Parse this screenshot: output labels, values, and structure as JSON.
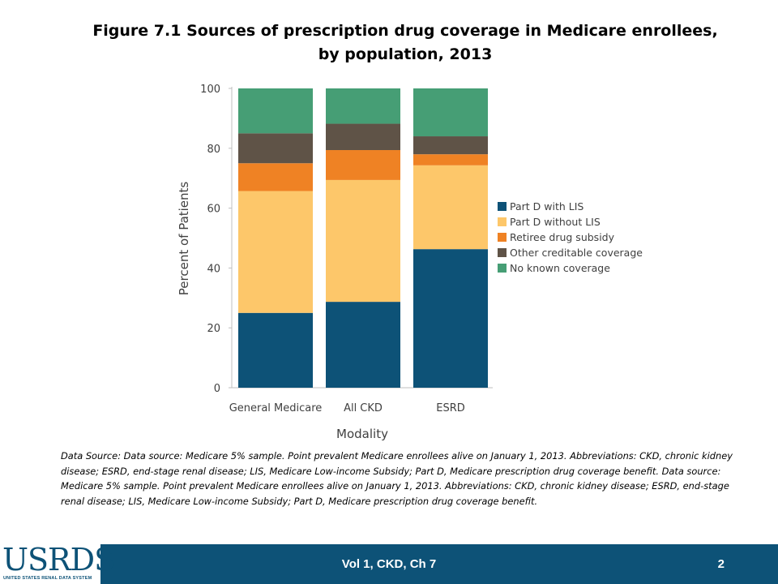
{
  "slide": {
    "title_line1": "Figure 7.1 Sources of prescription drug coverage in Medicare enrollees,",
    "title_line2": "by population, 2013",
    "source_text": "Data Source: Data source: Medicare 5% sample. Point prevalent Medicare enrollees alive on January 1, 2013. Abbreviations: CKD, chronic kidney disease; ESRD, end-stage renal disease; LIS, Medicare Low-income Subsidy; Part D, Medicare prescription drug coverage benefit. Data source: Medicare 5% sample. Point prevalent Medicare enrollees alive on January 1, 2013. Abbreviations: CKD, chronic kidney disease; ESRD, end-stage renal disease; LIS, Medicare Low-income Subsidy; Part D, Medicare prescription drug coverage benefit.",
    "footer_text": "Vol 1, CKD, Ch 7",
    "page_number": "2",
    "logo_word": "USRDS",
    "logo_subtitle": "UNITED STATES RENAL DATA SYSTEM",
    "colors": {
      "footer": "#0d5277",
      "logo": "#0d5277"
    }
  },
  "chart_data": {
    "type": "bar",
    "stacked": true,
    "categories": [
      "General Medicare",
      "All CKD",
      "ESRD"
    ],
    "series": [
      {
        "name": "Part D with LIS",
        "color": "#0d5277",
        "values": [
          25,
          28.7,
          46.3
        ]
      },
      {
        "name": "Part D without LIS",
        "color": "#fdc76a",
        "values": [
          40.7,
          40.7,
          28
        ]
      },
      {
        "name": "Retiree drug subsidy",
        "color": "#ef8224",
        "values": [
          9.3,
          10,
          3.7
        ]
      },
      {
        "name": "Other creditable coverage",
        "color": "#5f5347",
        "values": [
          10,
          8.8,
          6
        ]
      },
      {
        "name": "No known coverage",
        "color": "#469e75",
        "values": [
          15,
          11.8,
          16
        ]
      }
    ],
    "xlabel": "Modality",
    "ylabel": "Percent of Patients",
    "ylim": [
      0,
      100
    ],
    "yticks": [
      "0",
      "20",
      "40",
      "60",
      "80",
      "100"
    ],
    "grid": false,
    "legend_position": "right"
  }
}
